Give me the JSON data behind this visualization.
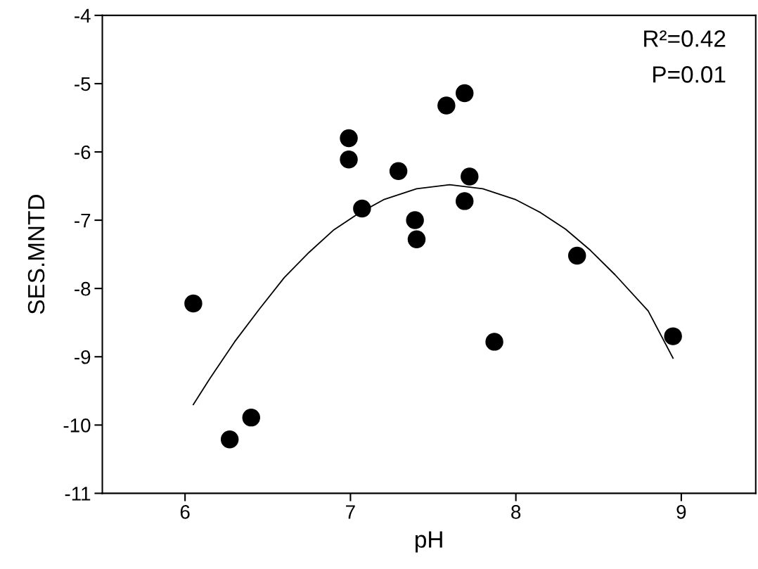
{
  "chart_data": {
    "type": "scatter",
    "xlabel": "pH",
    "ylabel": "SES.MNTD",
    "xlim": [
      5.5,
      9.45
    ],
    "xticks": [
      6,
      7,
      8,
      9
    ],
    "ylim": [
      -11,
      -4
    ],
    "yticks": [
      -11,
      -10,
      -9,
      -8,
      -7,
      -6,
      -5,
      -4
    ],
    "grid": false,
    "legend": false,
    "annotations": [
      "R²=0.42",
      "P=0.01"
    ],
    "series": [
      {
        "color": "#000000",
        "marker": "circle",
        "x": [
          6.05,
          6.27,
          6.4,
          6.99,
          6.99,
          7.07,
          7.29,
          7.39,
          7.4,
          7.58,
          7.69,
          7.72,
          7.69,
          7.87,
          8.37,
          8.95
        ],
        "values": [
          -8.22,
          -10.21,
          -9.89,
          -5.8,
          -6.11,
          -6.83,
          -6.28,
          -7.0,
          -7.28,
          -5.32,
          -5.14,
          -6.36,
          -6.72,
          -8.78,
          -7.52,
          -8.7
        ]
      },
      {
        "type": "line",
        "color": "#000000",
        "marker": "none",
        "line_style": "solid",
        "x": [
          6.05,
          6.15,
          6.3,
          6.45,
          6.6,
          6.75,
          6.9,
          7.05,
          7.2,
          7.4,
          7.6,
          7.8,
          8.0,
          8.15,
          8.3,
          8.45,
          8.6,
          8.8,
          8.95
        ],
        "values": [
          -9.7,
          -9.32,
          -8.78,
          -8.3,
          -7.84,
          -7.47,
          -7.14,
          -6.9,
          -6.7,
          -6.54,
          -6.48,
          -6.54,
          -6.7,
          -6.89,
          -7.13,
          -7.44,
          -7.8,
          -8.33,
          -9.02
        ]
      }
    ]
  }
}
